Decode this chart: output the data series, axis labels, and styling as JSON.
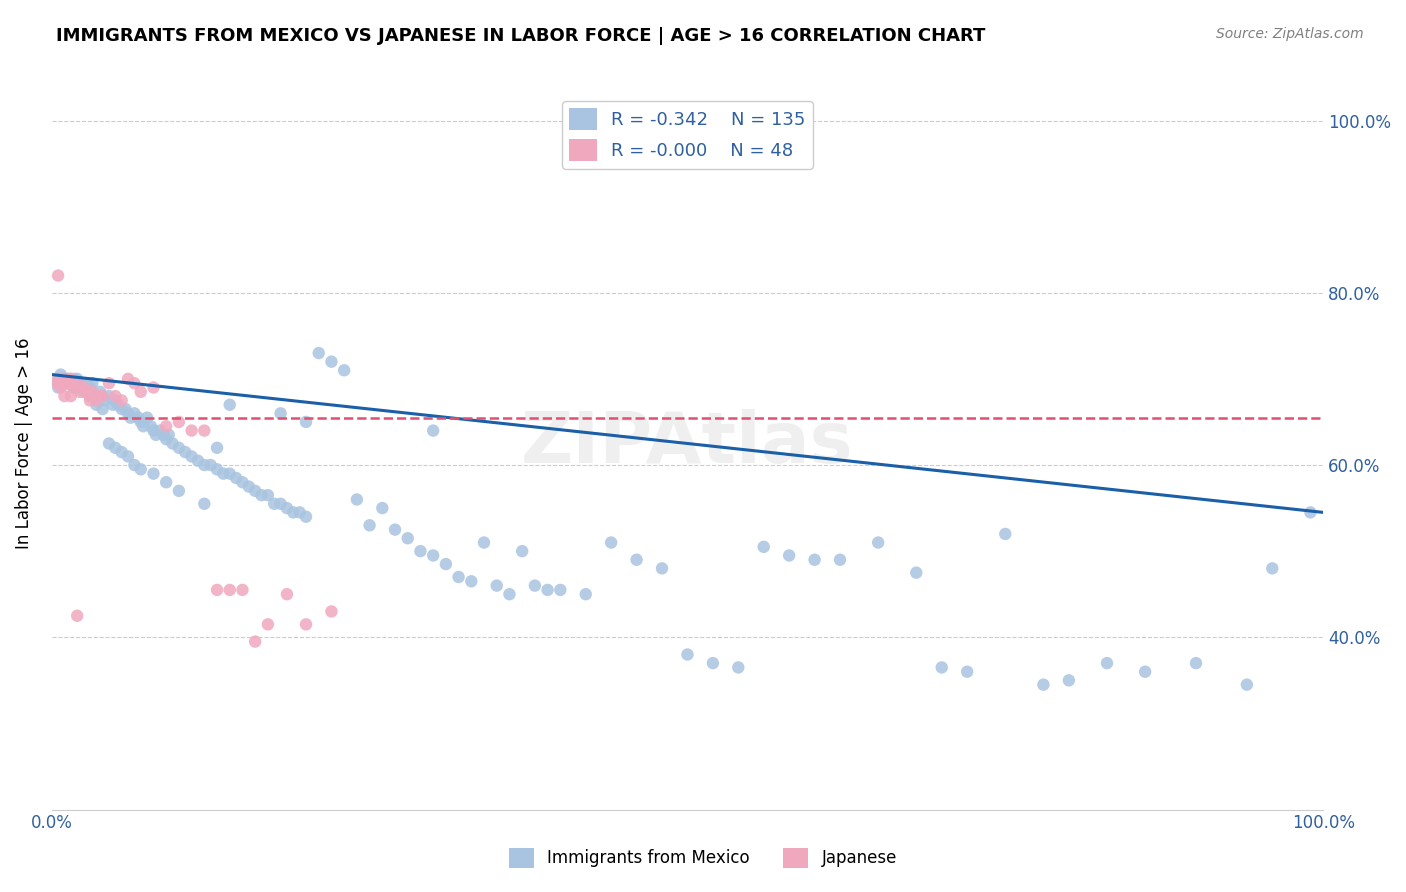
{
  "title": "IMMIGRANTS FROM MEXICO VS JAPANESE IN LABOR FORCE | AGE > 16 CORRELATION CHART",
  "source": "Source: ZipAtlas.com",
  "xlabel": "",
  "ylabel": "In Labor Force | Age > 16",
  "xlim": [
    0,
    1.0
  ],
  "ylim": [
    0.2,
    1.05
  ],
  "x_ticks": [
    0.0,
    0.2,
    0.4,
    0.6,
    0.8,
    1.0
  ],
  "y_ticks": [
    0.4,
    0.6,
    0.8,
    1.0
  ],
  "x_tick_labels": [
    "0.0%",
    "",
    "",
    "",
    "",
    "100.0%"
  ],
  "y_tick_labels_right": [
    "40.0%",
    "60.0%",
    "80.0%",
    "100.0%"
  ],
  "blue_R": "-0.342",
  "blue_N": "135",
  "pink_R": "-0.000",
  "pink_N": "48",
  "blue_color": "#a8c4e0",
  "pink_color": "#f0a8be",
  "blue_line_color": "#1a5fa8",
  "pink_line_color": "#e05070",
  "watermark": "ZIPAtlas",
  "blue_scatter_x": [
    0.005,
    0.006,
    0.007,
    0.008,
    0.009,
    0.01,
    0.011,
    0.012,
    0.013,
    0.014,
    0.015,
    0.016,
    0.017,
    0.018,
    0.019,
    0.02,
    0.021,
    0.022,
    0.023,
    0.025,
    0.027,
    0.028,
    0.03,
    0.032,
    0.035,
    0.038,
    0.04,
    0.042,
    0.045,
    0.048,
    0.05,
    0.052,
    0.055,
    0.058,
    0.06,
    0.062,
    0.065,
    0.068,
    0.07,
    0.072,
    0.075,
    0.078,
    0.08,
    0.082,
    0.085,
    0.088,
    0.09,
    0.092,
    0.095,
    0.1,
    0.105,
    0.11,
    0.115,
    0.12,
    0.125,
    0.13,
    0.135,
    0.14,
    0.145,
    0.15,
    0.155,
    0.16,
    0.165,
    0.17,
    0.175,
    0.18,
    0.185,
    0.19,
    0.195,
    0.2,
    0.21,
    0.22,
    0.23,
    0.24,
    0.25,
    0.26,
    0.27,
    0.28,
    0.29,
    0.3,
    0.31,
    0.32,
    0.33,
    0.34,
    0.35,
    0.36,
    0.37,
    0.38,
    0.39,
    0.4,
    0.42,
    0.44,
    0.46,
    0.48,
    0.5,
    0.52,
    0.54,
    0.56,
    0.58,
    0.6,
    0.62,
    0.65,
    0.68,
    0.7,
    0.72,
    0.75,
    0.78,
    0.8,
    0.83,
    0.86,
    0.9,
    0.94,
    0.96,
    0.99,
    0.005,
    0.008,
    0.01,
    0.012,
    0.015,
    0.018,
    0.02,
    0.025,
    0.03,
    0.035,
    0.04,
    0.045,
    0.05,
    0.055,
    0.06,
    0.065,
    0.07,
    0.08,
    0.09,
    0.1,
    0.12,
    0.13,
    0.14,
    0.18,
    0.2,
    0.3
  ],
  "blue_scatter_y": [
    0.695,
    0.7,
    0.705,
    0.695,
    0.7,
    0.695,
    0.7,
    0.695,
    0.7,
    0.695,
    0.7,
    0.695,
    0.69,
    0.7,
    0.695,
    0.7,
    0.695,
    0.69,
    0.695,
    0.695,
    0.69,
    0.695,
    0.69,
    0.695,
    0.68,
    0.685,
    0.68,
    0.675,
    0.68,
    0.67,
    0.675,
    0.67,
    0.665,
    0.665,
    0.66,
    0.655,
    0.66,
    0.655,
    0.65,
    0.645,
    0.655,
    0.645,
    0.64,
    0.635,
    0.64,
    0.635,
    0.63,
    0.635,
    0.625,
    0.62,
    0.615,
    0.61,
    0.605,
    0.6,
    0.6,
    0.595,
    0.59,
    0.59,
    0.585,
    0.58,
    0.575,
    0.57,
    0.565,
    0.565,
    0.555,
    0.555,
    0.55,
    0.545,
    0.545,
    0.54,
    0.73,
    0.72,
    0.71,
    0.56,
    0.53,
    0.55,
    0.525,
    0.515,
    0.5,
    0.495,
    0.485,
    0.47,
    0.465,
    0.51,
    0.46,
    0.45,
    0.5,
    0.46,
    0.455,
    0.455,
    0.45,
    0.51,
    0.49,
    0.48,
    0.38,
    0.37,
    0.365,
    0.505,
    0.495,
    0.49,
    0.49,
    0.51,
    0.475,
    0.365,
    0.36,
    0.52,
    0.345,
    0.35,
    0.37,
    0.36,
    0.37,
    0.345,
    0.48,
    0.545,
    0.69,
    0.695,
    0.7,
    0.695,
    0.695,
    0.69,
    0.69,
    0.685,
    0.68,
    0.67,
    0.665,
    0.625,
    0.62,
    0.615,
    0.61,
    0.6,
    0.595,
    0.59,
    0.58,
    0.57,
    0.555,
    0.62,
    0.67,
    0.66,
    0.65,
    0.64
  ],
  "pink_scatter_x": [
    0.004,
    0.005,
    0.006,
    0.007,
    0.008,
    0.009,
    0.01,
    0.011,
    0.012,
    0.013,
    0.014,
    0.015,
    0.016,
    0.018,
    0.02,
    0.022,
    0.025,
    0.028,
    0.03,
    0.032,
    0.035,
    0.038,
    0.04,
    0.045,
    0.05,
    0.055,
    0.06,
    0.065,
    0.07,
    0.08,
    0.09,
    0.1,
    0.11,
    0.12,
    0.13,
    0.14,
    0.15,
    0.16,
    0.17,
    0.185,
    0.2,
    0.22,
    0.005,
    0.007,
    0.01,
    0.015,
    0.02,
    0.03
  ],
  "pink_scatter_y": [
    0.695,
    0.7,
    0.695,
    0.7,
    0.695,
    0.7,
    0.695,
    0.695,
    0.7,
    0.695,
    0.695,
    0.7,
    0.695,
    0.69,
    0.695,
    0.685,
    0.69,
    0.685,
    0.68,
    0.685,
    0.675,
    0.68,
    0.68,
    0.695,
    0.68,
    0.675,
    0.7,
    0.695,
    0.685,
    0.69,
    0.645,
    0.65,
    0.64,
    0.64,
    0.455,
    0.455,
    0.455,
    0.395,
    0.415,
    0.45,
    0.415,
    0.43,
    0.82,
    0.69,
    0.68,
    0.68,
    0.425,
    0.675
  ],
  "blue_trendline": [
    [
      0.0,
      0.705
    ],
    [
      1.0,
      0.545
    ]
  ],
  "pink_trendline": [
    [
      0.0,
      0.655
    ],
    [
      1.0,
      0.655
    ]
  ]
}
